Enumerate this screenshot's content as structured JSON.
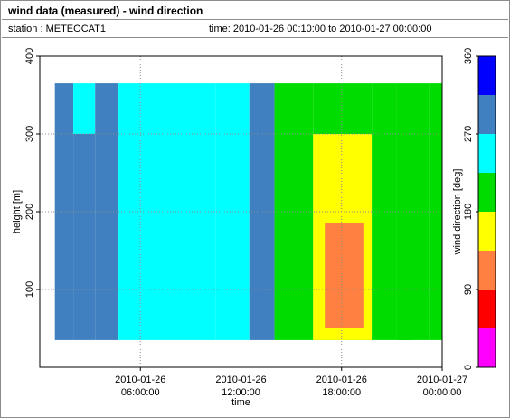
{
  "header": {
    "title": "wind data (measured) - wind direction",
    "station": "station : METEOCAT1",
    "time_range": "time: 2010-01-26 00:10:00 to 2010-01-27 00:00:00"
  },
  "chart_data": {
    "type": "heatmap",
    "title": "wind data (measured) - wind direction",
    "xlabel": "time",
    "ylabel": "height [m]",
    "colorbar_label": "wind direction [deg]",
    "xlim": [
      0,
      24
    ],
    "ylim": [
      0,
      400
    ],
    "x_ticks": [
      {
        "value": 6,
        "label": [
          "2010-01-26",
          "06:00:00"
        ]
      },
      {
        "value": 12,
        "label": [
          "2010-01-26",
          "12:00:00"
        ]
      },
      {
        "value": 18,
        "label": [
          "2010-01-26",
          "18:00:00"
        ]
      },
      {
        "value": 24,
        "label": [
          "2010-01-27",
          "00:00:00"
        ]
      }
    ],
    "y_ticks": [
      100,
      200,
      300,
      400
    ],
    "colorbar": {
      "range": [
        0,
        360
      ],
      "ticks": [
        0,
        90,
        180,
        270,
        360
      ],
      "bins": [
        {
          "from": 0,
          "to": 45,
          "color": "#ff00ff"
        },
        {
          "from": 45,
          "to": 90,
          "color": "#ff0000"
        },
        {
          "from": 90,
          "to": 135,
          "color": "#ff8040"
        },
        {
          "from": 135,
          "to": 180,
          "color": "#ffff00"
        },
        {
          "from": 180,
          "to": 225,
          "color": "#00dc00"
        },
        {
          "from": 225,
          "to": 270,
          "color": "#00ffff"
        },
        {
          "from": 270,
          "to": 315,
          "color": "#4080c0"
        },
        {
          "from": 315,
          "to": 360,
          "color": "#0000ff"
        }
      ]
    },
    "grid": true,
    "measured_heights": [
      35,
      365
    ],
    "time_step_minutes": 10,
    "regions": [
      {
        "t": [
          0.9,
          2.0
        ],
        "h": [
          35,
          365
        ],
        "dir": 295
      },
      {
        "t": [
          2.0,
          3.3
        ],
        "h": [
          35,
          300
        ],
        "dir": 290
      },
      {
        "t": [
          2.0,
          3.3
        ],
        "h": [
          300,
          365
        ],
        "dir": 260
      },
      {
        "t": [
          3.3,
          4.7
        ],
        "h": [
          35,
          365
        ],
        "dir": 295
      },
      {
        "t": [
          4.7,
          6.0
        ],
        "h": [
          35,
          365
        ],
        "dir": 250
      },
      {
        "t": [
          6.0,
          10.5
        ],
        "h": [
          35,
          365
        ],
        "dir": 250
      },
      {
        "t": [
          10.5,
          12.5
        ],
        "h": [
          35,
          365
        ],
        "dir": 250
      },
      {
        "t": [
          12.5,
          14.0
        ],
        "h": [
          35,
          365
        ],
        "dir": 290
      },
      {
        "t": [
          14.0,
          16.3
        ],
        "h": [
          35,
          365
        ],
        "dir": 200
      },
      {
        "t": [
          16.3,
          19.8
        ],
        "h": [
          35,
          365
        ],
        "dir": 200
      },
      {
        "t": [
          16.3,
          19.8
        ],
        "h": [
          35,
          300
        ],
        "dir": 160
      },
      {
        "t": [
          17.0,
          19.3
        ],
        "h": [
          50,
          185
        ],
        "dir": 120
      },
      {
        "t": [
          19.8,
          21.3
        ],
        "h": [
          35,
          365
        ],
        "dir": 200
      },
      {
        "t": [
          21.3,
          23.2
        ],
        "h": [
          35,
          365
        ],
        "dir": 200
      },
      {
        "t": [
          21.3,
          22.3
        ],
        "h": [
          35,
          330
        ],
        "dir": 190
      },
      {
        "t": [
          23.2,
          24.0
        ],
        "h": [
          35,
          365
        ],
        "dir": 200
      }
    ]
  }
}
